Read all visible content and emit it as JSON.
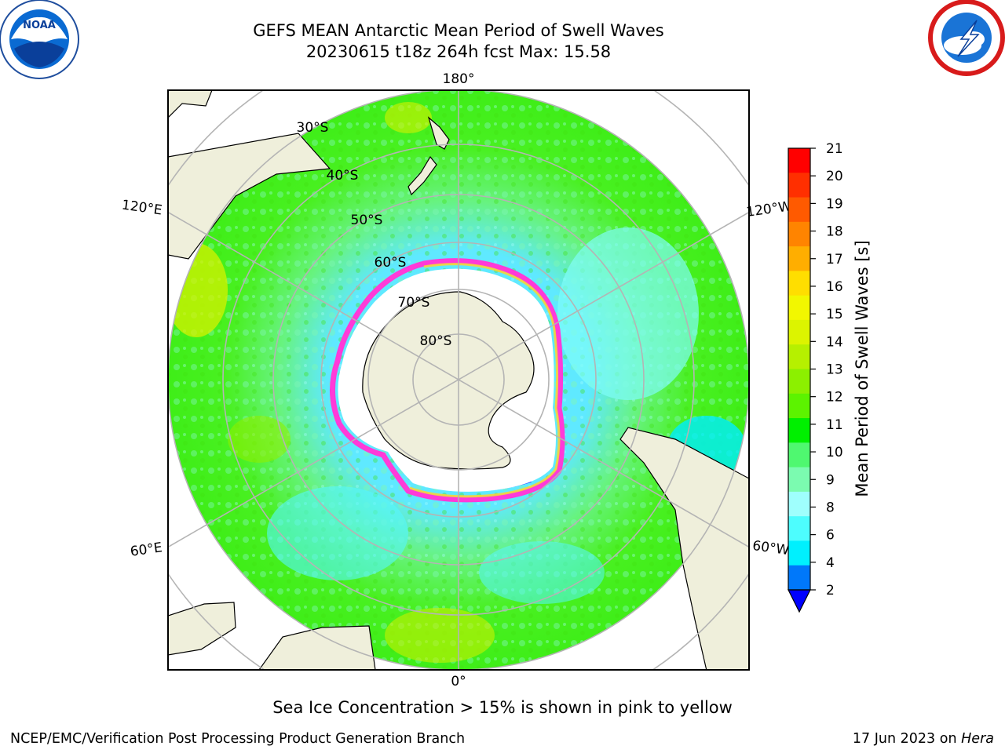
{
  "header": {
    "title_line1": "GEFS MEAN Antarctic Mean Period of Swell Waves",
    "title_line2": "20230615 t18z 264h fcst   Max: 15.58"
  },
  "logos": {
    "noaa": {
      "icon": "noaa-logo",
      "text": "NOAA"
    },
    "nws": {
      "icon": "nws-logo"
    }
  },
  "map": {
    "projection": "south polar stereographic",
    "longitude_labels": {
      "top": "180°",
      "bottom": "0°",
      "upper_left": "120°E",
      "upper_right": "120°W",
      "lower_left": "60°E",
      "lower_right": "60°W"
    },
    "latitude_labels": [
      "30°S",
      "40°S",
      "50°S",
      "60°S",
      "70°S",
      "80°S"
    ],
    "colors": {
      "land": "#efefdb",
      "ice_free_antarctic": "#ffffff",
      "grid": "#b4b4b4",
      "sea_ice_pink": "#ff3ad8",
      "sea_ice_yellow": "#f6d33a"
    }
  },
  "colorbar": {
    "label": "Mean Period of Swell Waves [s]",
    "ticks": [
      "21",
      "20",
      "19",
      "18",
      "17",
      "16",
      "15",
      "14",
      "13",
      "12",
      "11",
      "10",
      "9",
      "8",
      "6",
      "4",
      "2"
    ],
    "colors_top_to_bottom": [
      "#ff0000",
      "#ff2f00",
      "#ff5a00",
      "#ff8400",
      "#ffae00",
      "#ffde00",
      "#f2f700",
      "#dcf400",
      "#b6f000",
      "#8cf000",
      "#5cf300",
      "#00f000",
      "#4ff870",
      "#7bfbb0",
      "#9ffffd",
      "#4dfdfe",
      "#00f0fe",
      "#0078fa"
    ],
    "extend_color": "#0000ff"
  },
  "note": "Sea Ice Concentration > 15% is shown in pink to yellow",
  "footer": {
    "left": "NCEP/EMC/Verification Post Processing Product Generation Branch",
    "right_prefix": "17 Jun 2023 on",
    "right_host": "Hera"
  }
}
